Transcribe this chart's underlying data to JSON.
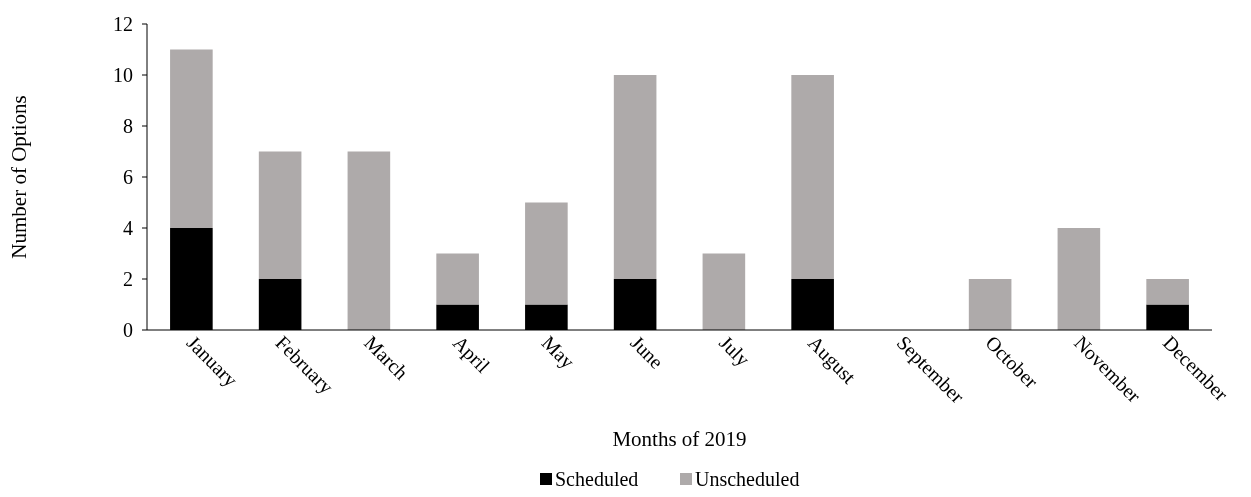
{
  "chart_data": {
    "type": "bar",
    "stacked": true,
    "xlabel": "Months of 2019",
    "ylabel": "Number of Options",
    "categories": [
      "January",
      "February",
      "March",
      "April",
      "May",
      "June",
      "July",
      "August",
      "September",
      "October",
      "November",
      "December"
    ],
    "series": [
      {
        "name": "Scheduled",
        "color": "#000000",
        "values": [
          4,
          2,
          0,
          1,
          1,
          2,
          0,
          2,
          0,
          0,
          0,
          1
        ]
      },
      {
        "name": "Unscheduled",
        "color": "#aeaaaa",
        "values": [
          7,
          5,
          7,
          2,
          4,
          8,
          3,
          8,
          0,
          2,
          4,
          1
        ]
      }
    ],
    "ylim": [
      0,
      12
    ],
    "yticks": [
      0,
      2,
      4,
      6,
      8,
      10,
      12
    ],
    "grid": false,
    "legend": "bottom"
  }
}
